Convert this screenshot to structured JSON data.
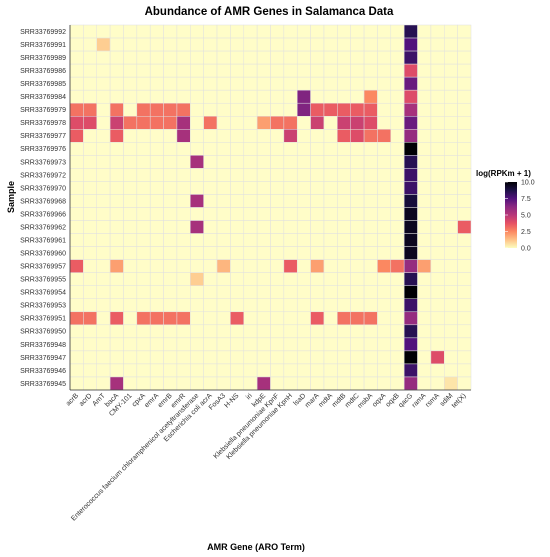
{
  "chart_data": {
    "type": "heatmap",
    "title": "Abundance of AMR Genes in Salamanca Data",
    "xlabel": "AMR Gene (ARO Term)",
    "ylabel": "Sample",
    "x_categories": [
      "acrB",
      "acrD",
      "AmT",
      "bacA",
      "CMY-101",
      "cpxA",
      "emrA",
      "emrB",
      "emrR",
      "Enterococcus faecium chloramphenicol acetyltransferase",
      "Escherichia coli acrA",
      "FosA3",
      "H-NS",
      "iri",
      "kdpE",
      "Klebsiella pneumoniae KpnF",
      "Klebsiella pneumoniae KpnH",
      "lsaD",
      "marA",
      "mdtA",
      "mdtB",
      "mdtC",
      "msbA",
      "oqxA",
      "oqxB",
      "qacG",
      "ramA",
      "rsmA",
      "sdiM",
      "tet(X)"
    ],
    "y_categories": [
      "SRR33769992",
      "SRR33769991",
      "SRR33769989",
      "SRR33769986",
      "SRR33769985",
      "SRR33769984",
      "SRR33769979",
      "SRR33769978",
      "SRR33769977",
      "SRR33769976",
      "SRR33769973",
      "SRR33769972",
      "SRR33769970",
      "SRR33769968",
      "SRR33769966",
      "SRR33769962",
      "SRR33769961",
      "SRR33769960",
      "SRR33769957",
      "SRR33769955",
      "SRR33769954",
      "SRR33769953",
      "SRR33769951",
      "SRR33769950",
      "SRR33769948",
      "SRR33769947",
      "SRR33769946",
      "SRR33769945"
    ],
    "values": [
      [
        0,
        0,
        0,
        0,
        0,
        0,
        0,
        0,
        0,
        0,
        0,
        0,
        0,
        0,
        0,
        0,
        0,
        0,
        0,
        0,
        0,
        0,
        0,
        0,
        0,
        8.5,
        0,
        0,
        0,
        0
      ],
      [
        0,
        0,
        1,
        0,
        0,
        0,
        0,
        0,
        0,
        0,
        0,
        0,
        0,
        0,
        0,
        0,
        0,
        0,
        0,
        0,
        0,
        0,
        0,
        0,
        0,
        7.5,
        0,
        0,
        0,
        0
      ],
      [
        0,
        0,
        0,
        0,
        0,
        0,
        0,
        0,
        0,
        0,
        0,
        0,
        0,
        0,
        0,
        0,
        0,
        0,
        0,
        0,
        0,
        0,
        0,
        0,
        0,
        8,
        0,
        0,
        0,
        0
      ],
      [
        0,
        0,
        0,
        0,
        0,
        0,
        0,
        0,
        0,
        0,
        0,
        0,
        0,
        0,
        0,
        0,
        0,
        0,
        0,
        0,
        0,
        0,
        0,
        0,
        0,
        4,
        0,
        0,
        0,
        0
      ],
      [
        0,
        0,
        0,
        0,
        0,
        0,
        0,
        0,
        0,
        0,
        0,
        0,
        0,
        0,
        0,
        0,
        0,
        0,
        0,
        0,
        0,
        0,
        0,
        0,
        0,
        7,
        0,
        0,
        0,
        0
      ],
      [
        0,
        0,
        0,
        0,
        0,
        0,
        0,
        0,
        0,
        0,
        0,
        0,
        0,
        0,
        0,
        0,
        0,
        6.5,
        0,
        0,
        0,
        0,
        2.5,
        0,
        0,
        4,
        0,
        0,
        0,
        0
      ],
      [
        3,
        3,
        0,
        3,
        0,
        3,
        3,
        3,
        3,
        0,
        0,
        0,
        0,
        0,
        0,
        0,
        0,
        6.5,
        3.5,
        3.5,
        3.5,
        3.5,
        3.5,
        0,
        0,
        5.5,
        0,
        0,
        0,
        0
      ],
      [
        4,
        4,
        0,
        4.5,
        3,
        3,
        3,
        3,
        5.5,
        0,
        3,
        0,
        0,
        0,
        2,
        3,
        3,
        0,
        4.5,
        0,
        4.5,
        4.5,
        4,
        0,
        0,
        7,
        0,
        0,
        0,
        0
      ],
      [
        3.5,
        0,
        0,
        3.5,
        0,
        0,
        0,
        0,
        5.5,
        0,
        0,
        0,
        0,
        0,
        0,
        0,
        4.5,
        0,
        0,
        0,
        3.5,
        4,
        3,
        3,
        0,
        6,
        0,
        0,
        0,
        0
      ],
      [
        0,
        0,
        0,
        0,
        0,
        0,
        0,
        0,
        0,
        0,
        0,
        0,
        0,
        0,
        0,
        0,
        0,
        0,
        0,
        0,
        0,
        0,
        0,
        0,
        0,
        10,
        0,
        0,
        0,
        0
      ],
      [
        0,
        0,
        0,
        0,
        0,
        0,
        0,
        0,
        0,
        5.5,
        0,
        0,
        0,
        0,
        0,
        0,
        0,
        0,
        0,
        0,
        0,
        0,
        0,
        0,
        0,
        8.5,
        0,
        0,
        0,
        0
      ],
      [
        0,
        0,
        0,
        0,
        0,
        0,
        0,
        0,
        0,
        0,
        0,
        0,
        0,
        0,
        0,
        0,
        0,
        0,
        0,
        0,
        0,
        0,
        0,
        0,
        0,
        8,
        0,
        0,
        0,
        0
      ],
      [
        0,
        0,
        0,
        0,
        0,
        0,
        0,
        0,
        0,
        0,
        0,
        0,
        0,
        0,
        0,
        0,
        0,
        0,
        0,
        0,
        0,
        0,
        0,
        0,
        0,
        8,
        0,
        0,
        0,
        0
      ],
      [
        0,
        0,
        0,
        0,
        0,
        0,
        0,
        0,
        0,
        5.5,
        0,
        0,
        0,
        0,
        0,
        0,
        0,
        0,
        0,
        0,
        0,
        0,
        0,
        0,
        0,
        9,
        0,
        0,
        0,
        0
      ],
      [
        0,
        0,
        0,
        0,
        0,
        0,
        0,
        0,
        0,
        0,
        0,
        0,
        0,
        0,
        0,
        0,
        0,
        0,
        0,
        0,
        0,
        0,
        0,
        0,
        0,
        9.5,
        0,
        0,
        0,
        0
      ],
      [
        0,
        0,
        0,
        0,
        0,
        0,
        0,
        0,
        0,
        5.5,
        0,
        0,
        0,
        0,
        0,
        0,
        0,
        0,
        0,
        0,
        0,
        0,
        0,
        0,
        0,
        9.5,
        0,
        0,
        0,
        3.5
      ],
      [
        0,
        0,
        0,
        0,
        0,
        0,
        0,
        0,
        0,
        0,
        0,
        0,
        0,
        0,
        0,
        0,
        0,
        0,
        0,
        0,
        0,
        0,
        0,
        0,
        0,
        9.5,
        0,
        0,
        0,
        0
      ],
      [
        0,
        0,
        0,
        0,
        0,
        0,
        0,
        0,
        0,
        0,
        0,
        0,
        0,
        0,
        0,
        0,
        0,
        0,
        0,
        0,
        0,
        0,
        0,
        0,
        0,
        9.5,
        0,
        0,
        0,
        0
      ],
      [
        3.5,
        0,
        0,
        2,
        0,
        0,
        0,
        0,
        0,
        0,
        0,
        1.5,
        0,
        0,
        0,
        0,
        3.5,
        0,
        2,
        0,
        0,
        0,
        0,
        2.5,
        3,
        6,
        2,
        0,
        0,
        0
      ],
      [
        0,
        0,
        0,
        0,
        0,
        0,
        0,
        0,
        0,
        1,
        0,
        0,
        0,
        0,
        0,
        0,
        0,
        0,
        0,
        0,
        0,
        0,
        0,
        0,
        0,
        8.5,
        0,
        0,
        0,
        0
      ],
      [
        0,
        0,
        0,
        0,
        0,
        0,
        0,
        0,
        0,
        0,
        0,
        0,
        0,
        0,
        0,
        0,
        0,
        0,
        0,
        0,
        0,
        0,
        0,
        0,
        0,
        10,
        0,
        0,
        0,
        0
      ],
      [
        0,
        0,
        0,
        0,
        0,
        0,
        0,
        0,
        0,
        0,
        0,
        0,
        0,
        0,
        0,
        0,
        0,
        0,
        0,
        0,
        0,
        0,
        0,
        0,
        0,
        8,
        0,
        0,
        0,
        0
      ],
      [
        3,
        3,
        0,
        3.5,
        0,
        3,
        3,
        3,
        3,
        0,
        0,
        0,
        3.5,
        0,
        0,
        0,
        0,
        0,
        3.5,
        0,
        3,
        3,
        3,
        0,
        0,
        6,
        0,
        0,
        0,
        0
      ],
      [
        0,
        0,
        0,
        0,
        0,
        0,
        0,
        0,
        0,
        0,
        0,
        0,
        0,
        0,
        0,
        0,
        0,
        0,
        0,
        0,
        0,
        0,
        0,
        0,
        0,
        8.5,
        0,
        0,
        0,
        0
      ],
      [
        0,
        0,
        0,
        0,
        0,
        0,
        0,
        0,
        0,
        0,
        0,
        0,
        0,
        0,
        0,
        0,
        0,
        0,
        0,
        0,
        0,
        0,
        0,
        0,
        0,
        7.5,
        0,
        0,
        0,
        0
      ],
      [
        0,
        0,
        0,
        0,
        0,
        0,
        0,
        0,
        0,
        0,
        0,
        0,
        0,
        0,
        0,
        0,
        0,
        0,
        0,
        0,
        0,
        0,
        0,
        0,
        0,
        10,
        0,
        4,
        0,
        0
      ],
      [
        0,
        0,
        0,
        0,
        0,
        0,
        0,
        0,
        0,
        0,
        0,
        0,
        0,
        0,
        0,
        0,
        0,
        0,
        0,
        0,
        0,
        0,
        0,
        0,
        0,
        8,
        0,
        0,
        0,
        0
      ],
      [
        0,
        0,
        0,
        5.5,
        0,
        0,
        0,
        0,
        0,
        0,
        0,
        0,
        0,
        0,
        5.5,
        0,
        0,
        0,
        0,
        0,
        0,
        0,
        0,
        0,
        0,
        6,
        0,
        0,
        0.5,
        0
      ]
    ],
    "legend": {
      "title": "log(RPKm + 1)",
      "ticks": [
        "10.0",
        "7.5",
        "5.0",
        "2.5",
        "0.0"
      ],
      "range": [
        0,
        10
      ],
      "placement": "right",
      "colors": [
        "#fcfdbf",
        "#fec287",
        "#fb8861",
        "#e65164",
        "#b73779",
        "#8c2981",
        "#51127c",
        "#1d1147",
        "#000004"
      ]
    },
    "grid": true,
    "colors": {
      "background": "#fffdc8",
      "grid": "#e0e0e0"
    }
  }
}
